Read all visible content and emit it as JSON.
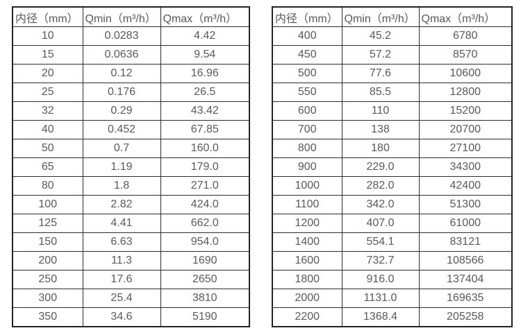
{
  "page": {
    "background_color": "#ffffff",
    "text_color": "#595959",
    "border_color": "#2b2b2b"
  },
  "tables": [
    {
      "id": "left",
      "headers": [
        "内径（mm）",
        "Qmin（m³/h）",
        "Qmax（m³/h）"
      ],
      "rows": [
        [
          "10",
          "0.0283",
          "4.42"
        ],
        [
          "15",
          "0.0636",
          "9.54"
        ],
        [
          "20",
          "0.12",
          "16.96"
        ],
        [
          "25",
          "0.176",
          "26.5"
        ],
        [
          "32",
          "0.29",
          "43.42"
        ],
        [
          "40",
          "0.452",
          "67.85"
        ],
        [
          "50",
          "0.7",
          "160.0"
        ],
        [
          "65",
          "1.19",
          "179.0"
        ],
        [
          "80",
          "1.8",
          "271.0"
        ],
        [
          "100",
          "2.82",
          "424.0"
        ],
        [
          "125",
          "4.41",
          "662.0"
        ],
        [
          "150",
          "6.63",
          "954.0"
        ],
        [
          "200",
          "11.3",
          "1690"
        ],
        [
          "250",
          "17.6",
          "2650"
        ],
        [
          "300",
          "25.4",
          "3810"
        ],
        [
          "350",
          "34.6",
          "5190"
        ]
      ]
    },
    {
      "id": "right",
      "headers": [
        "内径（mm）",
        "Qmin（m³/h）",
        "Qmax（m³/h）"
      ],
      "rows": [
        [
          "400",
          "45.2",
          "6780"
        ],
        [
          "450",
          "57.2",
          "8570"
        ],
        [
          "500",
          "77.6",
          "10600"
        ],
        [
          "550",
          "85.5",
          "12800"
        ],
        [
          "600",
          "110",
          "15200"
        ],
        [
          "700",
          "138",
          "20700"
        ],
        [
          "800",
          "180",
          "27100"
        ],
        [
          "900",
          "229.0",
          "34300"
        ],
        [
          "1000",
          "282.0",
          "42400"
        ],
        [
          "1100",
          "342.0",
          "51300"
        ],
        [
          "1200",
          "407.0",
          "61000"
        ],
        [
          "1400",
          "554.1",
          "83121"
        ],
        [
          "1600",
          "732.7",
          "108566"
        ],
        [
          "1800",
          "916.0",
          "137404"
        ],
        [
          "2000",
          "1131.0",
          "169635"
        ],
        [
          "2200",
          "1368.4",
          "205258"
        ]
      ]
    }
  ]
}
